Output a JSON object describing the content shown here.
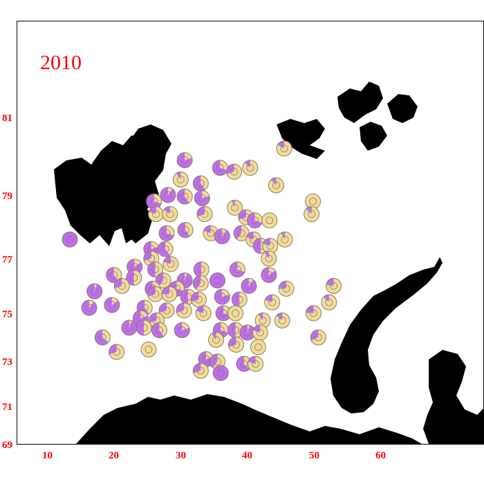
{
  "title": "2010",
  "axes": {
    "x_ticks": [
      "10",
      "20",
      "30",
      "40",
      "50",
      "60"
    ],
    "y_ticks": [
      "81",
      "79",
      "77",
      "75",
      "73",
      "71",
      "69"
    ]
  },
  "colors": {
    "label": "#ff0000",
    "land": "#000000",
    "pie_main": "#f2dc9b",
    "pie_purple": "#bf6df0",
    "pie_blue": "#4da8d8",
    "outline": "#8a7a60"
  },
  "stations": [
    {
      "lon": 30.2,
      "lat": 79.9,
      "purple": 0.8
    },
    {
      "lon": 35.5,
      "lat": 79.7,
      "purple": 0.7
    },
    {
      "lon": 37.6,
      "lat": 79.6,
      "purple": 0.3
    },
    {
      "lon": 40.0,
      "lat": 79.7,
      "purple": 0.1,
      "blue": 0.03
    },
    {
      "lon": 29.6,
      "lat": 79.4,
      "purple": 0.1
    },
    {
      "lon": 32.6,
      "lat": 79.3,
      "purple": 0.6
    },
    {
      "lon": 45.1,
      "lat": 80.2,
      "purple": 0.12,
      "blue": 0.05
    },
    {
      "lon": 43.9,
      "lat": 79.25,
      "purple": 0.1,
      "blue": 0.02
    },
    {
      "lon": 27.7,
      "lat": 79.0,
      "purple": 0.9
    },
    {
      "lon": 30.2,
      "lat": 78.95,
      "purple": 0.6
    },
    {
      "lon": 32.8,
      "lat": 78.9,
      "purple": 0.8
    },
    {
      "lon": 25.6,
      "lat": 78.8,
      "purple": 0.7
    },
    {
      "lon": 49.4,
      "lat": 78.8,
      "purple": 0.0
    },
    {
      "lon": 37.7,
      "lat": 78.6,
      "purple": 0.05,
      "blue": 0.02
    },
    {
      "lon": 33.2,
      "lat": 78.4,
      "purple": 0.3
    },
    {
      "lon": 25.9,
      "lat": 78.4,
      "purple": 0.2
    },
    {
      "lon": 28.0,
      "lat": 78.4,
      "purple": 0.15
    },
    {
      "lon": 39.4,
      "lat": 78.3,
      "purple": 0.3
    },
    {
      "lon": 40.7,
      "lat": 78.2,
      "purple": 0.7
    },
    {
      "lon": 42.9,
      "lat": 78.2,
      "purple": 0.0
    },
    {
      "lon": 49.2,
      "lat": 78.4,
      "purple": 0.1,
      "blue": 0.03
    },
    {
      "lon": 13.0,
      "lat": 77.6,
      "purple": 1.0
    },
    {
      "lon": 30.3,
      "lat": 77.9,
      "purple": 0.6
    },
    {
      "lon": 34.1,
      "lat": 77.8,
      "purple": 0.2
    },
    {
      "lon": 35.8,
      "lat": 77.7,
      "purple": 0.9
    },
    {
      "lon": 38.7,
      "lat": 77.8,
      "purple": 0.4
    },
    {
      "lon": 27.5,
      "lat": 77.8,
      "purple": 0.7
    },
    {
      "lon": 40.5,
      "lat": 77.6,
      "purple": 0.2
    },
    {
      "lon": 45.2,
      "lat": 77.6,
      "purple": 0.05,
      "blue": 0.04
    },
    {
      "lon": 25.2,
      "lat": 77.3,
      "purple": 0.8
    },
    {
      "lon": 27.3,
      "lat": 77.3,
      "purple": 0.6
    },
    {
      "lon": 41.6,
      "lat": 77.4,
      "purple": 0.5
    },
    {
      "lon": 43.0,
      "lat": 77.4,
      "purple": 0.15,
      "blue": 0.05
    },
    {
      "lon": 25.2,
      "lat": 77.0,
      "purple": 0.3
    },
    {
      "lon": 42.8,
      "lat": 77.0,
      "purple": 0.1
    },
    {
      "lon": 28.1,
      "lat": 76.8,
      "purple": 0.2
    },
    {
      "lon": 22.7,
      "lat": 76.7,
      "purple": 0.85
    },
    {
      "lon": 25.8,
      "lat": 76.6,
      "purple": 0.5
    },
    {
      "lon": 32.7,
      "lat": 76.6,
      "purple": 0.5
    },
    {
      "lon": 38.1,
      "lat": 76.6,
      "purple": 0.7
    },
    {
      "lon": 42.8,
      "lat": 76.4,
      "purple": 0.85
    },
    {
      "lon": 19.6,
      "lat": 76.4,
      "purple": 0.6
    },
    {
      "lon": 22.6,
      "lat": 76.3,
      "purple": 0.5
    },
    {
      "lon": 27.0,
      "lat": 76.2,
      "purple": 0.4
    },
    {
      "lon": 30.2,
      "lat": 76.2,
      "purple": 0.95
    },
    {
      "lon": 35.1,
      "lat": 76.2,
      "purple": 1.0
    },
    {
      "lon": 32.6,
      "lat": 76.1,
      "purple": 0.4
    },
    {
      "lon": 20.8,
      "lat": 76.0,
      "purple": 0.3
    },
    {
      "lon": 16.7,
      "lat": 75.8,
      "purple": 0.95
    },
    {
      "lon": 25.4,
      "lat": 75.9,
      "purple": 0.5
    },
    {
      "lon": 29.0,
      "lat": 75.9,
      "purple": 0.7
    },
    {
      "lon": 39.8,
      "lat": 76.0,
      "purple": 0.9
    },
    {
      "lon": 45.4,
      "lat": 75.9,
      "purple": 0.2,
      "blue": 0.05
    },
    {
      "lon": 52.5,
      "lat": 76.0,
      "purple": 0.2,
      "blue": 0.03
    },
    {
      "lon": 25.8,
      "lat": 75.7,
      "purple": 0.3
    },
    {
      "lon": 27.9,
      "lat": 75.7,
      "purple": 0.25
    },
    {
      "lon": 30.7,
      "lat": 75.6,
      "purple": 0.5
    },
    {
      "lon": 35.8,
      "lat": 75.6,
      "purple": 0.8
    },
    {
      "lon": 38.4,
      "lat": 75.5,
      "purple": 0.5
    },
    {
      "lon": 32.3,
      "lat": 75.5,
      "purple": 0.3
    },
    {
      "lon": 43.3,
      "lat": 75.4,
      "purple": 0.2
    },
    {
      "lon": 51.8,
      "lat": 75.4,
      "purple": 0.1,
      "blue": 0.03
    },
    {
      "lon": 19.3,
      "lat": 75.3,
      "purple": 0.85
    },
    {
      "lon": 15.9,
      "lat": 75.2,
      "purple": 0.9
    },
    {
      "lon": 24.2,
      "lat": 75.2,
      "purple": 0.6
    },
    {
      "lon": 27.5,
      "lat": 75.1,
      "purple": 0.3
    },
    {
      "lon": 30.1,
      "lat": 75.1,
      "purple": 0.3
    },
    {
      "lon": 33.0,
      "lat": 75.0,
      "purple": 0.2
    },
    {
      "lon": 36.0,
      "lat": 75.0,
      "purple": 0.7
    },
    {
      "lon": 37.8,
      "lat": 75.0,
      "purple": 0.0
    },
    {
      "lon": 49.5,
      "lat": 75.0,
      "purple": 0.2,
      "blue": 0.04
    },
    {
      "lon": 23.6,
      "lat": 74.8,
      "purple": 0.8
    },
    {
      "lon": 26.0,
      "lat": 74.7,
      "purple": 0.3
    },
    {
      "lon": 41.9,
      "lat": 74.7,
      "purple": 0.1
    },
    {
      "lon": 44.8,
      "lat": 74.7,
      "purple": 0.1,
      "blue": 0.04
    },
    {
      "lon": 24.1,
      "lat": 74.4,
      "purple": 0.5
    },
    {
      "lon": 21.9,
      "lat": 74.4,
      "purple": 0.95
    },
    {
      "lon": 26.4,
      "lat": 74.3,
      "purple": 0.6
    },
    {
      "lon": 29.8,
      "lat": 74.3,
      "purple": 0.8
    },
    {
      "lon": 35.6,
      "lat": 74.3,
      "purple": 0.7
    },
    {
      "lon": 37.8,
      "lat": 74.3,
      "purple": 0.5
    },
    {
      "lon": 39.6,
      "lat": 74.2,
      "purple": 0.95
    },
    {
      "lon": 41.5,
      "lat": 74.2,
      "purple": 0.2
    },
    {
      "lon": 50.2,
      "lat": 74.0,
      "purple": 0.3,
      "blue": 0.02
    },
    {
      "lon": 17.9,
      "lat": 74.0,
      "purple": 0.6,
      "blue": 0.04
    },
    {
      "lon": 34.9,
      "lat": 73.9,
      "purple": 0.1
    },
    {
      "lon": 37.9,
      "lat": 73.7,
      "purple": 0.3
    },
    {
      "lon": 41.2,
      "lat": 73.6,
      "purple": 0.0
    },
    {
      "lon": 24.8,
      "lat": 73.5,
      "purple": 0.0
    },
    {
      "lon": 20.0,
      "lat": 73.4,
      "purple": 0.3
    },
    {
      "lon": 33.4,
      "lat": 73.1,
      "purple": 0.8
    },
    {
      "lon": 35.1,
      "lat": 73.0,
      "purple": 0.4
    },
    {
      "lon": 39.1,
      "lat": 72.9,
      "purple": 0.6,
      "blue": 0.03
    },
    {
      "lon": 40.8,
      "lat": 72.9,
      "purple": 0.2
    },
    {
      "lon": 32.6,
      "lat": 72.6,
      "purple": 0.3
    },
    {
      "lon": 35.6,
      "lat": 72.5,
      "purple": 1.0
    }
  ]
}
